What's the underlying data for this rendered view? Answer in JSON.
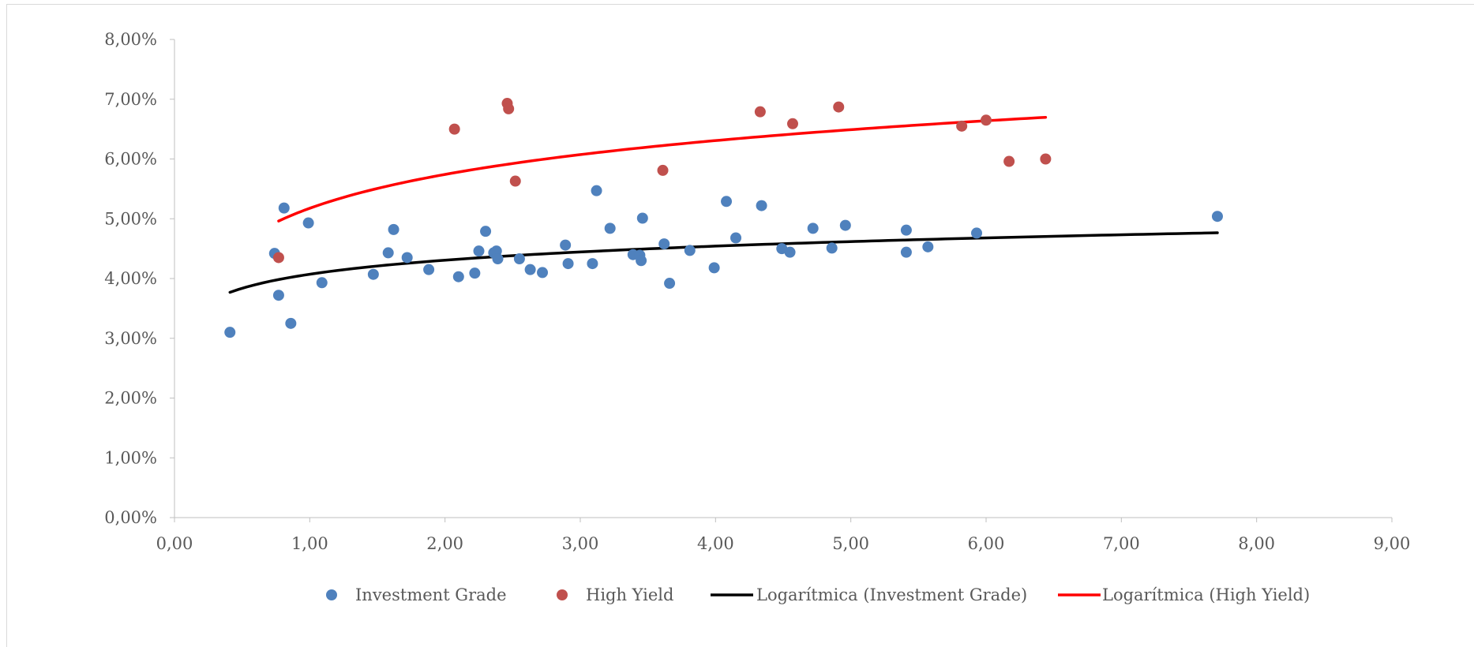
{
  "chart_data": {
    "type": "scatter",
    "title": "",
    "xlabel": "",
    "ylabel": "",
    "xlim": [
      0,
      9
    ],
    "ylim": [
      0,
      8
    ],
    "x_ticks": [
      "0,00",
      "1,00",
      "2,00",
      "3,00",
      "4,00",
      "5,00",
      "6,00",
      "7,00",
      "8,00",
      "9,00"
    ],
    "y_ticks": [
      "0,00%",
      "1,00%",
      "2,00%",
      "3,00%",
      "4,00%",
      "5,00%",
      "6,00%",
      "7,00%",
      "8,00%"
    ],
    "grid": false,
    "legend_position": "bottom",
    "series": [
      {
        "name": "Investment Grade",
        "kind": "scatter",
        "color": "#4f81bd",
        "x": [
          0.41,
          0.74,
          0.77,
          0.81,
          0.86,
          0.99,
          1.09,
          1.47,
          1.58,
          1.62,
          1.72,
          1.88,
          2.1,
          2.22,
          2.25,
          2.3,
          2.36,
          2.38,
          2.39,
          2.55,
          2.63,
          2.72,
          2.89,
          2.91,
          3.09,
          3.12,
          3.22,
          3.39,
          3.44,
          3.45,
          3.46,
          3.62,
          3.66,
          3.81,
          3.99,
          4.08,
          4.15,
          4.34,
          4.49,
          4.55,
          4.72,
          4.86,
          4.96,
          5.41,
          5.41,
          5.57,
          5.93,
          7.71
        ],
        "y": [
          3.1,
          4.42,
          3.72,
          5.18,
          3.25,
          4.93,
          3.93,
          4.07,
          4.43,
          4.82,
          4.35,
          4.15,
          4.03,
          4.09,
          4.46,
          4.79,
          4.43,
          4.46,
          4.33,
          4.33,
          4.15,
          4.1,
          4.56,
          4.25,
          4.25,
          5.47,
          4.84,
          4.4,
          4.39,
          4.3,
          5.01,
          4.58,
          3.92,
          4.47,
          4.18,
          5.29,
          4.68,
          5.22,
          4.5,
          4.44,
          4.84,
          4.51,
          4.89,
          4.44,
          4.81,
          4.53,
          4.76,
          5.04
        ]
      },
      {
        "name": "High Yield",
        "kind": "scatter",
        "color": "#c0504d",
        "x": [
          0.77,
          2.07,
          2.46,
          2.47,
          2.52,
          3.61,
          4.33,
          4.57,
          4.91,
          5.82,
          6.0,
          6.17,
          6.44
        ],
        "y": [
          4.35,
          6.5,
          6.93,
          6.84,
          5.63,
          5.81,
          6.79,
          6.59,
          6.87,
          6.55,
          6.65,
          5.96,
          6.0
        ]
      },
      {
        "name": "Logarítmica (Investment Grade)",
        "kind": "line",
        "color": "#000000",
        "trend": "log",
        "x": [
          0.41,
          0.6,
          0.8,
          1.0,
          1.25,
          1.5,
          2.0,
          2.5,
          3.0,
          3.5,
          4.0,
          4.5,
          5.0,
          5.5,
          6.0,
          6.5,
          7.0,
          7.71
        ],
        "y": [
          3.78,
          3.9,
          4.0,
          4.07,
          4.15,
          4.21,
          4.3,
          4.38,
          4.44,
          4.49,
          4.53,
          4.57,
          4.61,
          4.64,
          4.67,
          4.7,
          4.73,
          4.83
        ]
      },
      {
        "name": "Logarítmica (High Yield)",
        "kind": "line",
        "color": "#ff0000",
        "trend": "log",
        "x": [
          0.77,
          1.0,
          1.25,
          1.5,
          1.75,
          2.0,
          2.5,
          3.0,
          3.5,
          4.0,
          4.5,
          5.0,
          5.5,
          6.0,
          6.44
        ],
        "y": [
          4.92,
          5.19,
          5.37,
          5.52,
          5.65,
          5.76,
          5.93,
          6.07,
          6.19,
          6.3,
          6.39,
          6.47,
          6.55,
          6.62,
          6.75
        ]
      }
    ]
  }
}
